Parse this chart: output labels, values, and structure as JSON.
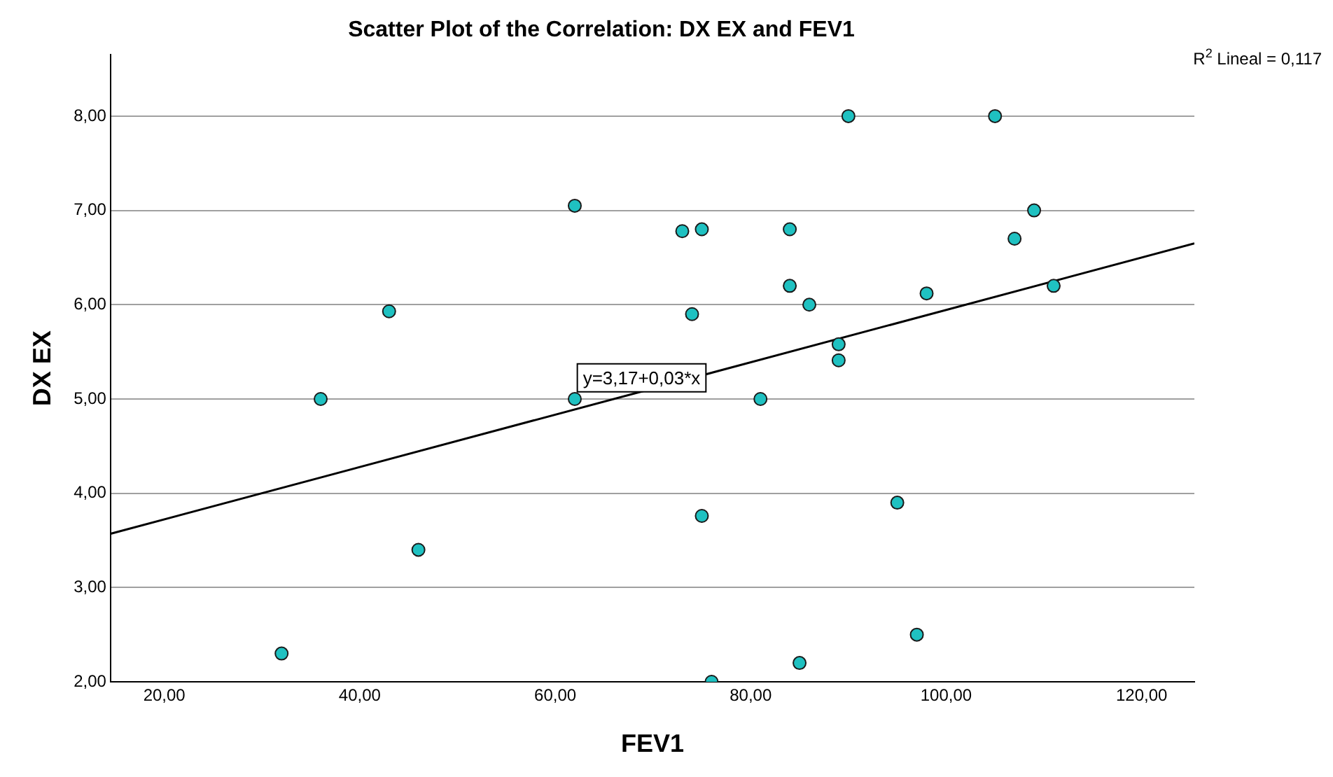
{
  "chart_data": {
    "type": "scatter",
    "title": "Scatter Plot of the Correlation: DX EX and FEV1",
    "xlabel": "FEV1",
    "ylabel": "DX EX",
    "series": [
      {
        "color": "#1fc1c1",
        "marker": "circle",
        "x": [
          32,
          36,
          43,
          46,
          62,
          62,
          73,
          75,
          74,
          75,
          76,
          81,
          84,
          84,
          85,
          86,
          89,
          89,
          90,
          95,
          97,
          98,
          105,
          107,
          109,
          111
        ],
        "values": [
          2.3,
          5.0,
          5.93,
          3.4,
          7.05,
          5.0,
          6.78,
          6.8,
          5.9,
          3.76,
          2.0,
          5.0,
          6.8,
          6.2,
          2.2,
          6.0,
          5.58,
          5.41,
          8.0,
          3.9,
          2.5,
          6.12,
          8.0,
          6.7,
          7.0,
          6.2
        ]
      },
      {
        "type": "line",
        "color": "#000000",
        "x": [
          14.5,
          125.4
        ],
        "values": [
          3.57,
          6.65
        ]
      }
    ],
    "xlim": [
      14.5,
      125.4
    ],
    "ylim": [
      2,
      8.65
    ],
    "xticks": [
      {
        "value": 20,
        "label": "20,00"
      },
      {
        "value": 40,
        "label": "40,00"
      },
      {
        "value": 60,
        "label": "60,00"
      },
      {
        "value": 80,
        "label": "80,00"
      },
      {
        "value": 100,
        "label": "100,00"
      },
      {
        "value": 120,
        "label": "120,00"
      }
    ],
    "yticks": [
      {
        "value": 2,
        "label": "2,00"
      },
      {
        "value": 3,
        "label": "3,00"
      },
      {
        "value": 4,
        "label": "4,00"
      },
      {
        "value": 5,
        "label": "5,00"
      },
      {
        "value": 6,
        "label": "6,00"
      },
      {
        "value": 7,
        "label": "7,00"
      },
      {
        "value": 8,
        "label": "8,00"
      }
    ],
    "grid": "y",
    "line_style": "solid",
    "annotations": [
      "y=3,17+0,03*x",
      "R$^{2}$ Lineal = 0,117"
    ]
  }
}
